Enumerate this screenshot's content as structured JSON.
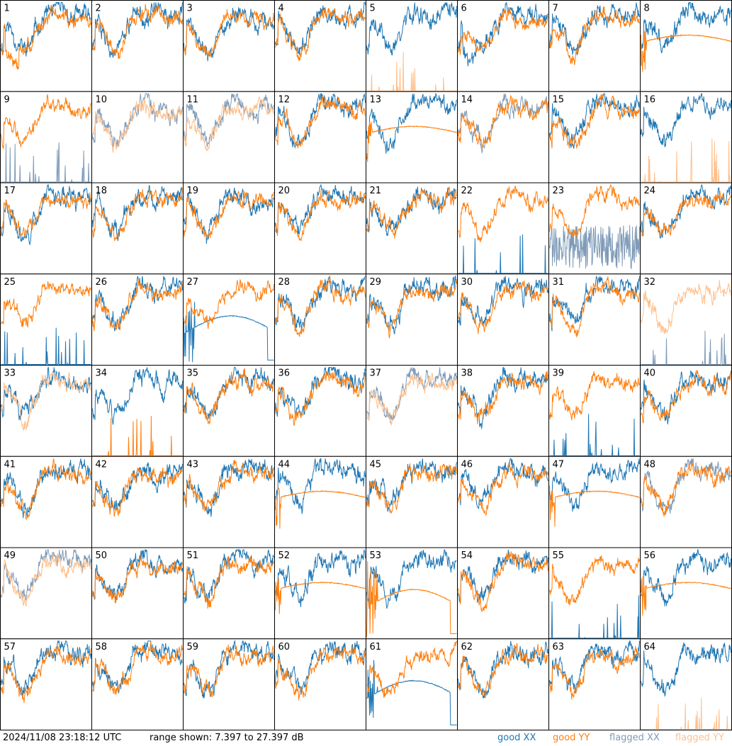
{
  "timestamp": "2024/11/08 23:18:12 UTC",
  "range_text": "range shown: 7.397 to 27.397 dB",
  "legend": [
    {
      "label": "good XX",
      "color": "#1f77b4"
    },
    {
      "label": "good YY",
      "color": "#ff7f0e"
    },
    {
      "label": "flagged XX",
      "color": "#7f9bb8"
    },
    {
      "label": "flagged YY",
      "color": "#ffbf8a"
    }
  ],
  "chart_data": {
    "type": "line",
    "layout": "grid of 64 small-multiple panels, 8 columns x 8 rows",
    "ylim": [
      7.397,
      27.397
    ],
    "y_unit": "dB",
    "x_ticks": "none",
    "grid": false,
    "panels": [
      {
        "label": "1",
        "xx": "good",
        "yy": "good",
        "pattern": "yy_drop"
      },
      {
        "label": "2",
        "xx": "good",
        "yy": "good",
        "pattern": "normal"
      },
      {
        "label": "3",
        "xx": "good",
        "yy": "good",
        "pattern": "normal"
      },
      {
        "label": "4",
        "xx": "good",
        "yy": "good",
        "pattern": "normal"
      },
      {
        "label": "5",
        "xx": "good",
        "yy": "flagged",
        "pattern": "yy_spiky"
      },
      {
        "label": "6",
        "xx": "good",
        "yy": "good",
        "pattern": "xx_drop"
      },
      {
        "label": "7",
        "xx": "good",
        "yy": "good",
        "pattern": "normal"
      },
      {
        "label": "8",
        "xx": "good",
        "yy": "good",
        "pattern": "yy_smooth"
      },
      {
        "label": "9",
        "xx": "flagged",
        "yy": "good",
        "pattern": "xx_spiky"
      },
      {
        "label": "10",
        "xx": "flagged",
        "yy": "flagged",
        "pattern": "normal"
      },
      {
        "label": "11",
        "xx": "flagged",
        "yy": "flagged",
        "pattern": "normal"
      },
      {
        "label": "12",
        "xx": "good",
        "yy": "good",
        "pattern": "normal"
      },
      {
        "label": "13",
        "xx": "good",
        "yy": "good",
        "pattern": "yy_smooth"
      },
      {
        "label": "14",
        "xx": "flagged",
        "yy": "good",
        "pattern": "normal"
      },
      {
        "label": "15",
        "xx": "good",
        "yy": "good",
        "pattern": "normal"
      },
      {
        "label": "16",
        "xx": "good",
        "yy": "flagged",
        "pattern": "yy_spiky"
      },
      {
        "label": "17",
        "xx": "good",
        "yy": "good",
        "pattern": "normal"
      },
      {
        "label": "18",
        "xx": "good",
        "yy": "good",
        "pattern": "normal"
      },
      {
        "label": "19",
        "xx": "good",
        "yy": "good",
        "pattern": "normal"
      },
      {
        "label": "20",
        "xx": "good",
        "yy": "good",
        "pattern": "normal"
      },
      {
        "label": "21",
        "xx": "good",
        "yy": "good",
        "pattern": "normal"
      },
      {
        "label": "22",
        "xx": "good",
        "yy": "good",
        "pattern": "xx_spiky"
      },
      {
        "label": "23",
        "xx": "flagged",
        "yy": "good",
        "pattern": "xx_noisy_low"
      },
      {
        "label": "24",
        "xx": "good",
        "yy": "good",
        "pattern": "normal"
      },
      {
        "label": "25",
        "xx": "good",
        "yy": "good",
        "pattern": "xx_spiky"
      },
      {
        "label": "26",
        "xx": "good",
        "yy": "good",
        "pattern": "normal"
      },
      {
        "label": "27",
        "xx": "good",
        "yy": "good",
        "pattern": "xx_smooth_drop"
      },
      {
        "label": "28",
        "xx": "good",
        "yy": "good",
        "pattern": "normal"
      },
      {
        "label": "29",
        "xx": "good",
        "yy": "good",
        "pattern": "normal"
      },
      {
        "label": "30",
        "xx": "good",
        "yy": "good",
        "pattern": "normal"
      },
      {
        "label": "31",
        "xx": "good",
        "yy": "good",
        "pattern": "normal"
      },
      {
        "label": "32",
        "xx": "flagged",
        "yy": "flagged",
        "pattern": "xx_spiky"
      },
      {
        "label": "33",
        "xx": "good",
        "yy": "flagged",
        "pattern": "normal"
      },
      {
        "label": "34",
        "xx": "good",
        "yy": "good",
        "pattern": "yy_spiky"
      },
      {
        "label": "35",
        "xx": "good",
        "yy": "good",
        "pattern": "normal"
      },
      {
        "label": "36",
        "xx": "good",
        "yy": "good",
        "pattern": "normal"
      },
      {
        "label": "37",
        "xx": "flagged",
        "yy": "flagged",
        "pattern": "normal"
      },
      {
        "label": "38",
        "xx": "good",
        "yy": "good",
        "pattern": "normal"
      },
      {
        "label": "39",
        "xx": "good",
        "yy": "good",
        "pattern": "xx_spiky"
      },
      {
        "label": "40",
        "xx": "good",
        "yy": "good",
        "pattern": "normal"
      },
      {
        "label": "41",
        "xx": "good",
        "yy": "good",
        "pattern": "normal"
      },
      {
        "label": "42",
        "xx": "good",
        "yy": "good",
        "pattern": "normal"
      },
      {
        "label": "43",
        "xx": "good",
        "yy": "good",
        "pattern": "normal"
      },
      {
        "label": "44",
        "xx": "good",
        "yy": "good",
        "pattern": "yy_smooth"
      },
      {
        "label": "45",
        "xx": "good",
        "yy": "good",
        "pattern": "normal"
      },
      {
        "label": "46",
        "xx": "good",
        "yy": "good",
        "pattern": "normal"
      },
      {
        "label": "47",
        "xx": "good",
        "yy": "good",
        "pattern": "yy_smooth"
      },
      {
        "label": "48",
        "xx": "flagged",
        "yy": "good",
        "pattern": "normal"
      },
      {
        "label": "49",
        "xx": "flagged",
        "yy": "flagged",
        "pattern": "normal"
      },
      {
        "label": "50",
        "xx": "good",
        "yy": "good",
        "pattern": "normal"
      },
      {
        "label": "51",
        "xx": "good",
        "yy": "good",
        "pattern": "normal"
      },
      {
        "label": "52",
        "xx": "good",
        "yy": "good",
        "pattern": "yy_smooth"
      },
      {
        "label": "53",
        "xx": "good",
        "yy": "good",
        "pattern": "yy_smooth_drop"
      },
      {
        "label": "54",
        "xx": "good",
        "yy": "good",
        "pattern": "normal"
      },
      {
        "label": "55",
        "xx": "good",
        "yy": "good",
        "pattern": "xx_spiky"
      },
      {
        "label": "56",
        "xx": "good",
        "yy": "good",
        "pattern": "yy_smooth"
      },
      {
        "label": "57",
        "xx": "good",
        "yy": "good",
        "pattern": "normal"
      },
      {
        "label": "58",
        "xx": "good",
        "yy": "good",
        "pattern": "normal"
      },
      {
        "label": "59",
        "xx": "good",
        "yy": "good",
        "pattern": "normal"
      },
      {
        "label": "60",
        "xx": "good",
        "yy": "good",
        "pattern": "normal"
      },
      {
        "label": "61",
        "xx": "good",
        "yy": "good",
        "pattern": "xx_smooth_drop"
      },
      {
        "label": "62",
        "xx": "good",
        "yy": "good",
        "pattern": "normal"
      },
      {
        "label": "63",
        "xx": "good",
        "yy": "good",
        "pattern": "normal"
      },
      {
        "label": "64",
        "xx": "good",
        "yy": "flagged",
        "pattern": "yy_spiky"
      }
    ]
  }
}
